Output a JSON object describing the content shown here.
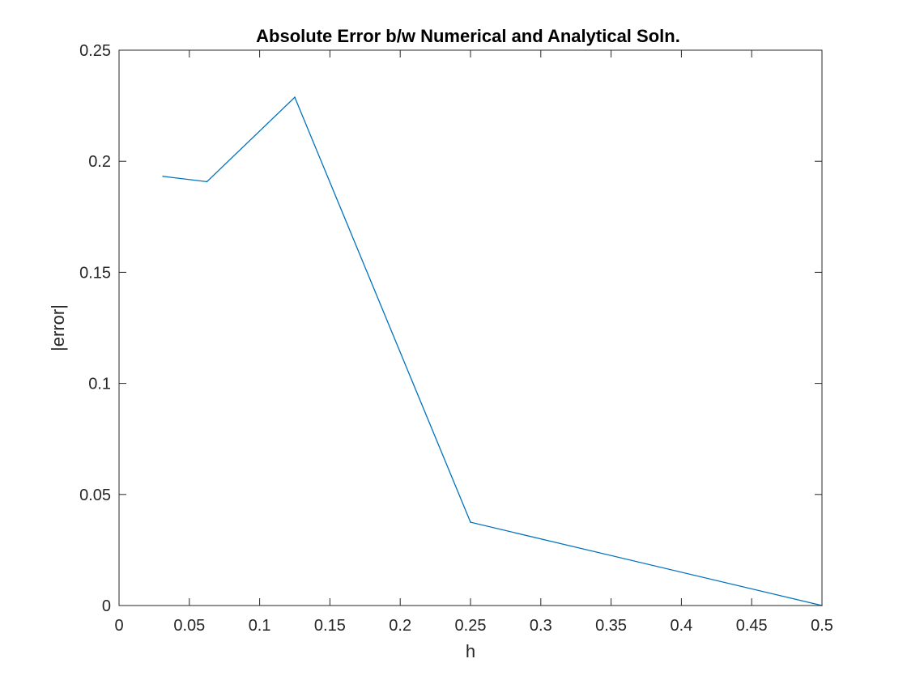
{
  "chart_data": {
    "type": "line",
    "title": "Absolute Error b/w Numerical and Analytical Soln.",
    "xlabel": "h",
    "ylabel": "|error|",
    "xlim": [
      0,
      0.5
    ],
    "ylim": [
      0,
      0.25
    ],
    "xticks": [
      0,
      0.05,
      0.1,
      0.15,
      0.2,
      0.25,
      0.3,
      0.35,
      0.4,
      0.45,
      0.5
    ],
    "xtick_labels": [
      "0",
      "0.05",
      "0.1",
      "0.15",
      "0.2",
      "0.25",
      "0.3",
      "0.35",
      "0.4",
      "0.45",
      "0.5"
    ],
    "yticks": [
      0,
      0.05,
      0.1,
      0.15,
      0.2,
      0.25
    ],
    "ytick_labels": [
      "0",
      "0.05",
      "0.1",
      "0.15",
      "0.2",
      "0.25"
    ],
    "grid": false,
    "box": true,
    "series": [
      {
        "color": "#0072bd",
        "x": [
          0.03125,
          0.0625,
          0.125,
          0.25,
          0.5
        ],
        "y": [
          0.1932,
          0.1908,
          0.2288,
          0.0375,
          0.0
        ]
      }
    ]
  }
}
